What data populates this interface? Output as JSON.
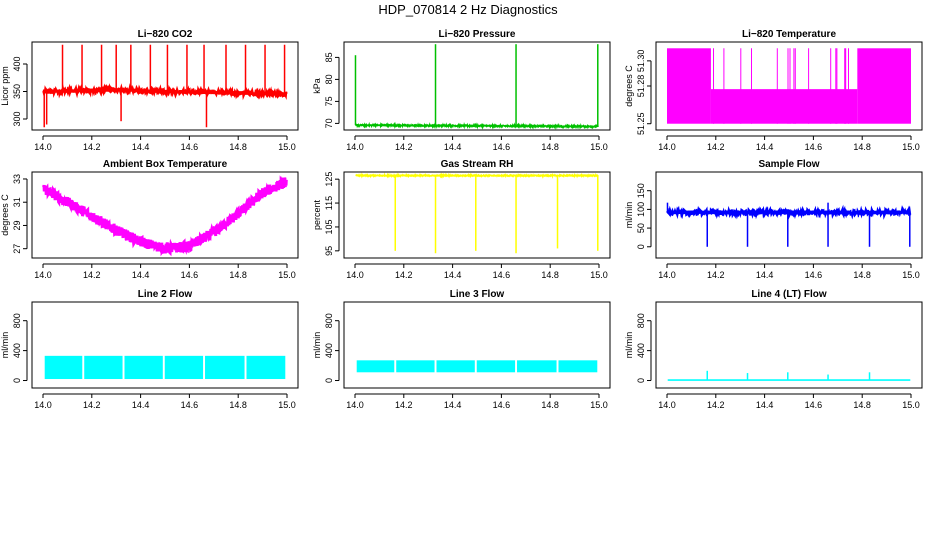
{
  "figure_title": "HDP_070814  2 Hz Diagnostics",
  "chart_data": [
    {
      "type": "line",
      "title": "Li−820 CO2",
      "ylabel": "Licor ppm",
      "color": "#ff0000",
      "xlim": [
        14.0,
        15.0
      ],
      "ylim": [
        280,
        440
      ],
      "x_ticks": [
        "14.0",
        "14.2",
        "14.4",
        "14.6",
        "14.8",
        "15.0"
      ],
      "y_ticks": [
        {
          "value": 300,
          "label": "300"
        },
        {
          "value": 350,
          "label": "350"
        },
        {
          "value": 400,
          "label": "400"
        }
      ],
      "series": [
        {
          "baseline": [
            [
              14.0,
              350
            ],
            [
              14.3,
              353
            ],
            [
              14.6,
              349
            ],
            [
              15.0,
              346
            ]
          ],
          "noise": 3,
          "spikes": [
            {
              "x": 14.005,
              "y": 285
            },
            {
              "x": 14.015,
              "y": 290
            },
            {
              "x": 14.08,
              "y": 435
            },
            {
              "x": 14.16,
              "y": 435
            },
            {
              "x": 14.24,
              "y": 435
            },
            {
              "x": 14.3,
              "y": 435
            },
            {
              "x": 14.32,
              "y": 296
            },
            {
              "x": 14.36,
              "y": 435
            },
            {
              "x": 14.44,
              "y": 435
            },
            {
              "x": 14.51,
              "y": 435
            },
            {
              "x": 14.59,
              "y": 435
            },
            {
              "x": 14.66,
              "y": 435
            },
            {
              "x": 14.67,
              "y": 285
            },
            {
              "x": 14.75,
              "y": 435
            },
            {
              "x": 14.83,
              "y": 435
            },
            {
              "x": 14.91,
              "y": 435
            },
            {
              "x": 14.99,
              "y": 435
            }
          ]
        }
      ]
    },
    {
      "type": "line",
      "title": "Li−820 Pressure",
      "ylabel": "kPa",
      "color": "#00c000",
      "xlim": [
        14.0,
        15.0
      ],
      "ylim": [
        68.5,
        88.5
      ],
      "x_ticks": [
        "14.0",
        "14.2",
        "14.4",
        "14.6",
        "14.8",
        "15.0"
      ],
      "y_ticks": [
        {
          "value": 70,
          "label": "70"
        },
        {
          "value": 75,
          "label": "75"
        },
        {
          "value": 80,
          "label": "80"
        },
        {
          "value": 85,
          "label": "85"
        }
      ],
      "series": [
        {
          "baseline": [
            [
              14.0,
              69.6
            ],
            [
              15.0,
              69.3
            ]
          ],
          "noise": 0.15,
          "spikes": [
            {
              "x": 14.002,
              "y": 85.5
            },
            {
              "x": 14.33,
              "y": 88
            },
            {
              "x": 14.66,
              "y": 88
            },
            {
              "x": 14.995,
              "y": 88
            }
          ]
        }
      ]
    },
    {
      "type": "line",
      "title": "Li−820 Temperature",
      "ylabel": "degrees C",
      "color": "#ff00ff",
      "xlim": [
        14.0,
        15.0
      ],
      "ylim": [
        51.245,
        51.315
      ],
      "x_ticks": [
        "14.0",
        "14.2",
        "14.4",
        "14.6",
        "14.8",
        "15.0"
      ],
      "y_ticks": [
        {
          "value": 51.25,
          "label": "51.25"
        },
        {
          "value": 51.28,
          "label": "51.28"
        },
        {
          "value": 51.3,
          "label": "51.30"
        }
      ],
      "series": [
        {
          "levels": [
            51.25,
            51.2775,
            51.31
          ],
          "segments": [
            {
              "x0": 14.0,
              "x1": 14.18,
              "low": 51.25,
              "high": 51.31
            },
            {
              "x0": 14.18,
              "x1": 14.78,
              "low": 51.25,
              "high": 51.2775
            },
            {
              "x0": 14.78,
              "x1": 15.0,
              "low": 51.25,
              "high": 51.31
            }
          ]
        }
      ]
    },
    {
      "type": "line",
      "title": "Ambient Box Temperature",
      "ylabel": "degrees C",
      "color": "#ff00ff",
      "xlim": [
        14.0,
        15.0
      ],
      "ylim": [
        26.2,
        33.6
      ],
      "x_ticks": [
        "14.0",
        "14.2",
        "14.4",
        "14.6",
        "14.8",
        "15.0"
      ],
      "y_ticks": [
        {
          "value": 27,
          "label": "27"
        },
        {
          "value": 29,
          "label": "29"
        },
        {
          "value": 31,
          "label": "31"
        },
        {
          "value": 33,
          "label": "33"
        }
      ],
      "series": [
        {
          "baseline": [
            [
              14.0,
              32.2
            ],
            [
              14.1,
              31.0
            ],
            [
              14.2,
              29.8
            ],
            [
              14.3,
              28.6
            ],
            [
              14.4,
              27.6
            ],
            [
              14.5,
              27.0
            ],
            [
              14.6,
              27.2
            ],
            [
              14.7,
              28.4
            ],
            [
              14.8,
              30.0
            ],
            [
              14.9,
              31.8
            ],
            [
              15.0,
              32.8
            ]
          ],
          "noise": 0.45,
          "spikes": []
        }
      ]
    },
    {
      "type": "line",
      "title": "Gas Stream RH",
      "ylabel": "percent",
      "color": "#ffff00",
      "xlim": [
        14.0,
        15.0
      ],
      "ylim": [
        92,
        128
      ],
      "x_ticks": [
        "14.0",
        "14.2",
        "14.4",
        "14.6",
        "14.8",
        "15.0"
      ],
      "y_ticks": [
        {
          "value": 95,
          "label": "95"
        },
        {
          "value": 105,
          "label": "105"
        },
        {
          "value": 115,
          "label": "115"
        },
        {
          "value": 125,
          "label": "125"
        }
      ],
      "series": [
        {
          "baseline": [
            [
              14.0,
              126.5
            ],
            [
              15.0,
              126.5
            ]
          ],
          "noise": 0.2,
          "dips": [
            {
              "x": 14.165,
              "y": 95
            },
            {
              "x": 14.33,
              "y": 94
            },
            {
              "x": 14.495,
              "y": 95
            },
            {
              "x": 14.66,
              "y": 94
            },
            {
              "x": 14.83,
              "y": 96
            },
            {
              "x": 14.995,
              "y": 95
            }
          ]
        }
      ]
    },
    {
      "type": "line",
      "title": "Sample Flow",
      "ylabel": "ml/min",
      "color": "#0000ff",
      "xlim": [
        14.0,
        15.0
      ],
      "ylim": [
        -30,
        200
      ],
      "x_ticks": [
        "14.0",
        "14.2",
        "14.4",
        "14.6",
        "14.8",
        "15.0"
      ],
      "y_ticks": [
        {
          "value": 0,
          "label": "0"
        },
        {
          "value": 50,
          "label": "50"
        },
        {
          "value": 100,
          "label": "100"
        },
        {
          "value": 150,
          "label": "150"
        }
      ],
      "series": [
        {
          "baseline": [
            [
              14.0,
              92
            ],
            [
              15.0,
              92
            ]
          ],
          "noise": 5,
          "spikes": [
            {
              "x": 14.002,
              "y": 118
            },
            {
              "x": 14.66,
              "y": 118
            }
          ],
          "dips": [
            {
              "x": 14.165,
              "y": 0
            },
            {
              "x": 14.33,
              "y": 0
            },
            {
              "x": 14.495,
              "y": 0
            },
            {
              "x": 14.66,
              "y": 0
            },
            {
              "x": 14.83,
              "y": 0
            },
            {
              "x": 14.995,
              "y": 0
            }
          ]
        }
      ]
    },
    {
      "type": "line",
      "title": "Line 2 Flow",
      "ylabel": "ml/min",
      "color": "#00ffff",
      "xlim": [
        14.0,
        15.0
      ],
      "ylim": [
        -100,
        1050
      ],
      "x_ticks": [
        "14.0",
        "14.2",
        "14.4",
        "14.6",
        "14.8",
        "15.0"
      ],
      "y_ticks": [
        {
          "value": 0,
          "label": "0"
        },
        {
          "value": 400,
          "label": "400"
        },
        {
          "value": 800,
          "label": "800"
        }
      ],
      "series": [
        {
          "band": {
            "low": 20,
            "high": 330
          },
          "gaps": [
            14.165,
            14.33,
            14.495,
            14.66,
            14.83
          ]
        }
      ]
    },
    {
      "type": "line",
      "title": "Line 3 Flow",
      "ylabel": "ml/min",
      "color": "#00ffff",
      "xlim": [
        14.0,
        15.0
      ],
      "ylim": [
        -100,
        1050
      ],
      "x_ticks": [
        "14.0",
        "14.2",
        "14.4",
        "14.6",
        "14.8",
        "15.0"
      ],
      "y_ticks": [
        {
          "value": 0,
          "label": "0"
        },
        {
          "value": 400,
          "label": "400"
        },
        {
          "value": 800,
          "label": "800"
        }
      ],
      "series": [
        {
          "band": {
            "low": 110,
            "high": 270
          },
          "gaps": [
            14.165,
            14.33,
            14.495,
            14.66,
            14.83
          ]
        }
      ]
    },
    {
      "type": "line",
      "title": "Line 4 (LT) Flow",
      "ylabel": "ml/min",
      "color": "#00ffff",
      "xlim": [
        14.0,
        15.0
      ],
      "ylim": [
        -100,
        1050
      ],
      "x_ticks": [
        "14.0",
        "14.2",
        "14.4",
        "14.6",
        "14.8",
        "15.0"
      ],
      "y_ticks": [
        {
          "value": 0,
          "label": "0"
        },
        {
          "value": 400,
          "label": "400"
        },
        {
          "value": 800,
          "label": "800"
        }
      ],
      "series": [
        {
          "baseline": [
            [
              14.0,
              5
            ],
            [
              15.0,
              5
            ]
          ],
          "noise": 0,
          "spikes": [
            {
              "x": 14.165,
              "y": 130
            },
            {
              "x": 14.33,
              "y": 100
            },
            {
              "x": 14.495,
              "y": 110
            },
            {
              "x": 14.66,
              "y": 80
            },
            {
              "x": 14.83,
              "y": 110
            }
          ]
        }
      ]
    }
  ]
}
